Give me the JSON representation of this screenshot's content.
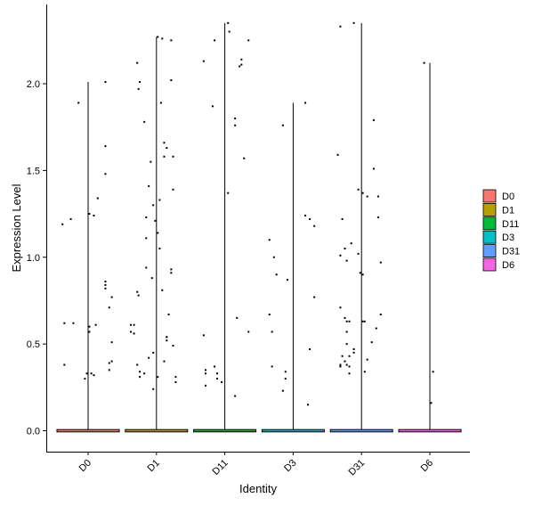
{
  "chart_data": {
    "type": "violin",
    "xlabel": "Identity",
    "ylabel": "Expression Level",
    "categories": [
      "D0",
      "D1",
      "D11",
      "D3",
      "D31",
      "D6"
    ],
    "ylim": [
      -0.13,
      2.4
    ],
    "yticks": [
      0.0,
      0.5,
      1.0,
      1.5,
      2.0
    ],
    "ytick_labels": [
      "0.0",
      "0.5",
      "1.0",
      "1.5",
      "2.0"
    ],
    "grid": false,
    "legend": {
      "placement": "right",
      "entries": [
        {
          "label": "D0",
          "color": "#F8766D"
        },
        {
          "label": "D1",
          "color": "#B79F00"
        },
        {
          "label": "D11",
          "color": "#00BA38"
        },
        {
          "label": "D3",
          "color": "#00BFC4"
        },
        {
          "label": "D31",
          "color": "#619CFF"
        },
        {
          "label": "D6",
          "color": "#F564E3"
        }
      ]
    },
    "series": [
      {
        "category": "D0",
        "max": 2.01,
        "points": [
          [
            -0.4,
            1.19
          ],
          [
            -0.27,
            1.22
          ],
          [
            -0.15,
            1.89
          ],
          [
            0.27,
            2.01
          ],
          [
            -0.37,
            0.62
          ],
          [
            -0.23,
            0.62
          ],
          [
            -0.37,
            0.38
          ],
          [
            0.02,
            1.25
          ],
          [
            0.09,
            1.24
          ],
          [
            0.15,
            1.34
          ],
          [
            0.27,
            1.64
          ],
          [
            0.27,
            1.48
          ],
          [
            0.27,
            0.86
          ],
          [
            0.27,
            0.84
          ],
          [
            0.27,
            0.82
          ],
          [
            0.33,
            0.71
          ],
          [
            0.37,
            0.77
          ],
          [
            0.37,
            0.51
          ],
          [
            0.37,
            0.4
          ],
          [
            0.33,
            0.39
          ],
          [
            0.33,
            0.35
          ],
          [
            0.02,
            0.57
          ],
          [
            0.02,
            0.6
          ],
          [
            -0.02,
            0.33
          ],
          [
            0.05,
            0.33
          ],
          [
            0.09,
            0.32
          ],
          [
            -0.05,
            0.3
          ],
          [
            0.12,
            0.61
          ]
        ]
      },
      {
        "category": "D1",
        "max": 2.27,
        "points": [
          [
            -0.4,
            0.61
          ],
          [
            -0.4,
            0.57
          ],
          [
            -0.35,
            0.56
          ],
          [
            -0.35,
            0.61
          ],
          [
            -0.3,
            0.38
          ],
          [
            -0.3,
            0.8
          ],
          [
            -0.28,
            0.78
          ],
          [
            -0.3,
            2.12
          ],
          [
            -0.28,
            1.97
          ],
          [
            -0.26,
            2.01
          ],
          [
            -0.19,
            1.78
          ],
          [
            -0.16,
            1.11
          ],
          [
            -0.16,
            1.23
          ],
          [
            -0.16,
            0.94
          ],
          [
            -0.12,
            1.41
          ],
          [
            -0.09,
            1.55
          ],
          [
            -0.07,
            0.88
          ],
          [
            0.02,
            2.27
          ],
          [
            -0.05,
            1.3
          ],
          [
            -0.02,
            1.21
          ],
          [
            0.02,
            1.14
          ],
          [
            0.05,
            1.33
          ],
          [
            0.05,
            1.05
          ],
          [
            0.07,
            1.89
          ],
          [
            0.09,
            0.81
          ],
          [
            0.12,
            1.66
          ],
          [
            0.12,
            1.58
          ],
          [
            0.16,
            1.63
          ],
          [
            0.16,
            0.52
          ],
          [
            0.16,
            0.54
          ],
          [
            0.19,
            0.67
          ],
          [
            0.23,
            0.93
          ],
          [
            0.23,
            0.91
          ],
          [
            0.26,
            1.39
          ],
          [
            0.3,
            0.28
          ],
          [
            0.3,
            0.31
          ],
          [
            0.26,
            1.58
          ],
          [
            0.26,
            0.49
          ],
          [
            0.23,
            2.25
          ],
          [
            0.23,
            2.02
          ],
          [
            0.09,
            2.26
          ],
          [
            -0.05,
            0.24
          ],
          [
            -0.05,
            0.45
          ],
          [
            -0.26,
            0.31
          ],
          [
            -0.26,
            0.34
          ],
          [
            -0.19,
            0.33
          ],
          [
            -0.12,
            0.42
          ],
          [
            0.02,
            0.31
          ],
          [
            0.12,
            0.4
          ],
          [
            0.16,
            0.54
          ]
        ]
      },
      {
        "category": "D11",
        "max": 2.35,
        "points": [
          [
            -0.33,
            2.13
          ],
          [
            -0.16,
            2.25
          ],
          [
            -0.19,
            1.87
          ],
          [
            0.05,
            2.35
          ],
          [
            0.07,
            2.3
          ],
          [
            0.16,
            1.8
          ],
          [
            0.16,
            1.76
          ],
          [
            0.23,
            2.1
          ],
          [
            0.26,
            2.14
          ],
          [
            0.3,
            1.57
          ],
          [
            0.37,
            2.25
          ],
          [
            0.05,
            1.37
          ],
          [
            0.19,
            0.65
          ],
          [
            -0.33,
            0.55
          ],
          [
            -0.3,
            0.35
          ],
          [
            -0.3,
            0.33
          ],
          [
            -0.3,
            0.26
          ],
          [
            -0.16,
            0.37
          ],
          [
            -0.12,
            0.3
          ],
          [
            -0.12,
            0.33
          ],
          [
            -0.05,
            0.28
          ],
          [
            0.16,
            0.2
          ],
          [
            0.37,
            0.57
          ],
          [
            0.26,
            2.11
          ]
        ]
      },
      {
        "category": "D3",
        "max": 1.89,
        "points": [
          [
            -0.37,
            1.1
          ],
          [
            -0.3,
            1.0
          ],
          [
            -0.37,
            0.67
          ],
          [
            -0.33,
            0.57
          ],
          [
            -0.33,
            0.37
          ],
          [
            -0.16,
            1.76
          ],
          [
            -0.09,
            0.87
          ],
          [
            -0.12,
            0.34
          ],
          [
            -0.12,
            0.3
          ],
          [
            -0.16,
            0.23
          ],
          [
            0.19,
            1.89
          ],
          [
            0.19,
            1.24
          ],
          [
            0.26,
            1.22
          ],
          [
            0.26,
            0.47
          ],
          [
            0.33,
            1.18
          ],
          [
            0.33,
            0.77
          ],
          [
            0.23,
            0.15
          ],
          [
            -0.26,
            0.9
          ]
        ]
      },
      {
        "category": "D31",
        "max": 2.35,
        "points": [
          [
            -0.37,
            1.59
          ],
          [
            -0.33,
            1.01
          ],
          [
            -0.3,
            1.22
          ],
          [
            -0.26,
            1.05
          ],
          [
            -0.23,
            0.98
          ],
          [
            -0.33,
            0.71
          ],
          [
            -0.26,
            0.65
          ],
          [
            -0.23,
            0.63
          ],
          [
            -0.23,
            0.57
          ],
          [
            -0.23,
            0.5
          ],
          [
            -0.23,
            0.38
          ],
          [
            -0.33,
            0.38
          ],
          [
            -0.33,
            0.37
          ],
          [
            -0.3,
            0.43
          ],
          [
            -0.26,
            0.4
          ],
          [
            -0.19,
            0.37
          ],
          [
            -0.19,
            0.33
          ],
          [
            -0.16,
            1.08
          ],
          [
            -0.12,
            2.35
          ],
          [
            -0.12,
            0.47
          ],
          [
            -0.05,
            1.39
          ],
          [
            -0.05,
            1.02
          ],
          [
            -0.02,
            0.91
          ],
          [
            0.02,
            0.63
          ],
          [
            0.02,
            0.9
          ],
          [
            0.05,
            0.63
          ],
          [
            0.05,
            0.34
          ],
          [
            0.09,
            1.35
          ],
          [
            0.09,
            0.41
          ],
          [
            0.16,
            0.51
          ],
          [
            0.19,
            1.79
          ],
          [
            0.19,
            1.51
          ],
          [
            0.23,
            0.59
          ],
          [
            0.26,
            1.35
          ],
          [
            0.26,
            1.23
          ],
          [
            0.3,
            0.97
          ],
          [
            0.3,
            0.67
          ],
          [
            -0.19,
            0.63
          ],
          [
            -0.33,
            2.33
          ],
          [
            -0.12,
            0.45
          ],
          [
            0.02,
            1.37
          ],
          [
            -0.19,
            0.43
          ]
        ]
      },
      {
        "category": "D6",
        "max": 2.12,
        "points": [
          [
            -0.09,
            2.12
          ],
          [
            0.02,
            0.16
          ],
          [
            0.05,
            0.34
          ]
        ]
      }
    ]
  }
}
